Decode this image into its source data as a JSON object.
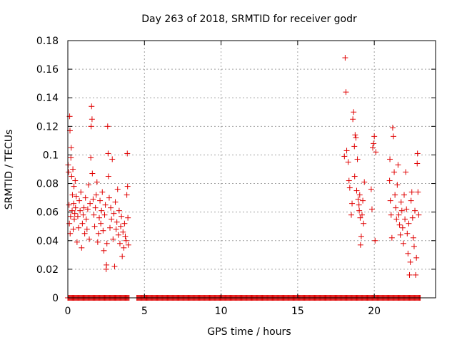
{
  "chart_data": {
    "type": "scatter",
    "title": "Day 263 of 2018, SRMTID for receiver godr",
    "xlabel": "GPS time / hours",
    "ylabel": "SRMTID / TECUs",
    "xlim": [
      0,
      24
    ],
    "ylim": [
      0,
      0.18
    ],
    "xticks": [
      0,
      5,
      10,
      15,
      20
    ],
    "yticks": [
      0,
      0.02,
      0.04,
      0.06,
      0.08,
      0.1,
      0.12,
      0.14,
      0.16,
      0.18
    ],
    "xtick_labels": [
      "0",
      "5",
      "10",
      "15",
      "20"
    ],
    "ytick_labels": [
      "0",
      "0.02",
      "0.04",
      "0.06",
      "0.08",
      "0.1",
      "0.12",
      "0.14",
      "0.16",
      "0.18"
    ],
    "grid": true,
    "marker": "+",
    "color": "#e00000",
    "series": [
      {
        "name": "SRMTID",
        "points": [
          [
            0.02,
            0.093
          ],
          [
            0.05,
            0.088
          ],
          [
            0.08,
            0.065
          ],
          [
            0.1,
            0.052
          ],
          [
            0.12,
            0.127
          ],
          [
            0.14,
            0.117
          ],
          [
            0.15,
            0.045
          ],
          [
            0.18,
            0.057
          ],
          [
            0.2,
            0.098
          ],
          [
            0.22,
            0.105
          ],
          [
            0.25,
            0.085
          ],
          [
            0.28,
            0.061
          ],
          [
            0.3,
            0.072
          ],
          [
            0.33,
            0.09
          ],
          [
            0.35,
            0.048
          ],
          [
            0.38,
            0.066
          ],
          [
            0.4,
            0.078
          ],
          [
            0.42,
            0.055
          ],
          [
            0.45,
            0.059
          ],
          [
            0.48,
            0.082
          ],
          [
            0.5,
            0.063
          ],
          [
            0.55,
            0.071
          ],
          [
            0.6,
            0.039
          ],
          [
            0.65,
            0.057
          ],
          [
            0.7,
            0.049
          ],
          [
            0.75,
            0.068
          ],
          [
            0.8,
            0.061
          ],
          [
            0.85,
            0.074
          ],
          [
            0.9,
            0.035
          ],
          [
            0.95,
            0.052
          ],
          [
            1.0,
            0.058
          ],
          [
            1.05,
            0.063
          ],
          [
            1.1,
            0.045
          ],
          [
            1.15,
            0.07
          ],
          [
            1.2,
            0.055
          ],
          [
            1.25,
            0.048
          ],
          [
            1.3,
            0.062
          ],
          [
            1.35,
            0.079
          ],
          [
            1.4,
            0.041
          ],
          [
            1.45,
            0.066
          ],
          [
            1.5,
            0.098
          ],
          [
            1.52,
            0.12
          ],
          [
            1.55,
            0.134
          ],
          [
            1.58,
            0.125
          ],
          [
            1.6,
            0.087
          ],
          [
            1.65,
            0.069
          ],
          [
            1.7,
            0.058
          ],
          [
            1.75,
            0.05
          ],
          [
            1.8,
            0.063
          ],
          [
            1.85,
            0.072
          ],
          [
            1.9,
            0.081
          ],
          [
            1.95,
            0.039
          ],
          [
            2.0,
            0.045
          ],
          [
            2.05,
            0.056
          ],
          [
            2.1,
            0.068
          ],
          [
            2.15,
            0.052
          ],
          [
            2.2,
            0.061
          ],
          [
            2.25,
            0.074
          ],
          [
            2.3,
            0.047
          ],
          [
            2.35,
            0.033
          ],
          [
            2.4,
            0.058
          ],
          [
            2.45,
            0.065
          ],
          [
            2.5,
            0.02
          ],
          [
            2.52,
            0.023
          ],
          [
            2.55,
            0.038
          ],
          [
            2.6,
            0.12
          ],
          [
            2.63,
            0.101
          ],
          [
            2.65,
            0.085
          ],
          [
            2.7,
            0.07
          ],
          [
            2.75,
            0.049
          ],
          [
            2.8,
            0.063
          ],
          [
            2.85,
            0.055
          ],
          [
            2.9,
            0.097
          ],
          [
            2.95,
            0.041
          ],
          [
            3.0,
            0.059
          ],
          [
            3.05,
            0.022
          ],
          [
            3.1,
            0.067
          ],
          [
            3.15,
            0.048
          ],
          [
            3.2,
            0.053
          ],
          [
            3.25,
            0.076
          ],
          [
            3.3,
            0.044
          ],
          [
            3.35,
            0.061
          ],
          [
            3.4,
            0.038
          ],
          [
            3.45,
            0.05
          ],
          [
            3.5,
            0.057
          ],
          [
            3.55,
            0.029
          ],
          [
            3.6,
            0.046
          ],
          [
            3.65,
            0.035
          ],
          [
            3.7,
            0.052
          ],
          [
            3.75,
            0.043
          ],
          [
            3.8,
            0.04
          ],
          [
            3.85,
            0.072
          ],
          [
            3.88,
            0.101
          ],
          [
            3.9,
            0.078
          ],
          [
            3.92,
            0.056
          ],
          [
            3.95,
            0.037
          ],
          [
            18.05,
            0.099
          ],
          [
            18.1,
            0.168
          ],
          [
            18.15,
            0.144
          ],
          [
            18.2,
            0.103
          ],
          [
            18.3,
            0.095
          ],
          [
            18.35,
            0.082
          ],
          [
            18.4,
            0.077
          ],
          [
            18.5,
            0.058
          ],
          [
            18.55,
            0.066
          ],
          [
            18.6,
            0.125
          ],
          [
            18.65,
            0.13
          ],
          [
            18.7,
            0.106
          ],
          [
            18.72,
            0.085
          ],
          [
            18.75,
            0.114
          ],
          [
            18.8,
            0.112
          ],
          [
            18.85,
            0.075
          ],
          [
            18.9,
            0.097
          ],
          [
            18.95,
            0.069
          ],
          [
            19.0,
            0.065
          ],
          [
            19.02,
            0.061
          ],
          [
            19.05,
            0.072
          ],
          [
            19.08,
            0.056
          ],
          [
            19.1,
            0.037
          ],
          [
            19.15,
            0.043
          ],
          [
            19.2,
            0.058
          ],
          [
            19.25,
            0.068
          ],
          [
            19.3,
            0.052
          ],
          [
            19.35,
            0.081
          ],
          [
            19.8,
            0.076
          ],
          [
            19.85,
            0.062
          ],
          [
            19.9,
            0.105
          ],
          [
            19.95,
            0.108
          ],
          [
            20.0,
            0.113
          ],
          [
            20.05,
            0.04
          ],
          [
            20.1,
            0.102
          ],
          [
            21.0,
            0.082
          ],
          [
            21.02,
            0.097
          ],
          [
            21.05,
            0.068
          ],
          [
            21.1,
            0.058
          ],
          [
            21.15,
            0.042
          ],
          [
            21.2,
            0.119
          ],
          [
            21.25,
            0.113
          ],
          [
            21.3,
            0.088
          ],
          [
            21.35,
            0.072
          ],
          [
            21.4,
            0.063
          ],
          [
            21.45,
            0.055
          ],
          [
            21.5,
            0.079
          ],
          [
            21.55,
            0.093
          ],
          [
            21.6,
            0.058
          ],
          [
            21.65,
            0.051
          ],
          [
            21.7,
            0.044
          ],
          [
            21.75,
            0.067
          ],
          [
            21.8,
            0.061
          ],
          [
            21.85,
            0.049
          ],
          [
            21.9,
            0.038
          ],
          [
            21.95,
            0.072
          ],
          [
            22.0,
            0.055
          ],
          [
            22.05,
            0.088
          ],
          [
            22.1,
            0.062
          ],
          [
            22.15,
            0.045
          ],
          [
            22.2,
            0.031
          ],
          [
            22.25,
            0.052
          ],
          [
            22.3,
            0.016
          ],
          [
            22.35,
            0.025
          ],
          [
            22.4,
            0.068
          ],
          [
            22.45,
            0.074
          ],
          [
            22.5,
            0.056
          ],
          [
            22.55,
            0.042
          ],
          [
            22.6,
            0.036
          ],
          [
            22.65,
            0.061
          ],
          [
            22.7,
            0.016
          ],
          [
            22.75,
            0.028
          ],
          [
            22.8,
            0.094
          ],
          [
            22.82,
            0.101
          ],
          [
            22.85,
            0.074
          ],
          [
            22.9,
            0.058
          ]
        ]
      }
    ],
    "zero_segments": [
      [
        0.0,
        4.0
      ],
      [
        4.5,
        23.0
      ]
    ]
  }
}
